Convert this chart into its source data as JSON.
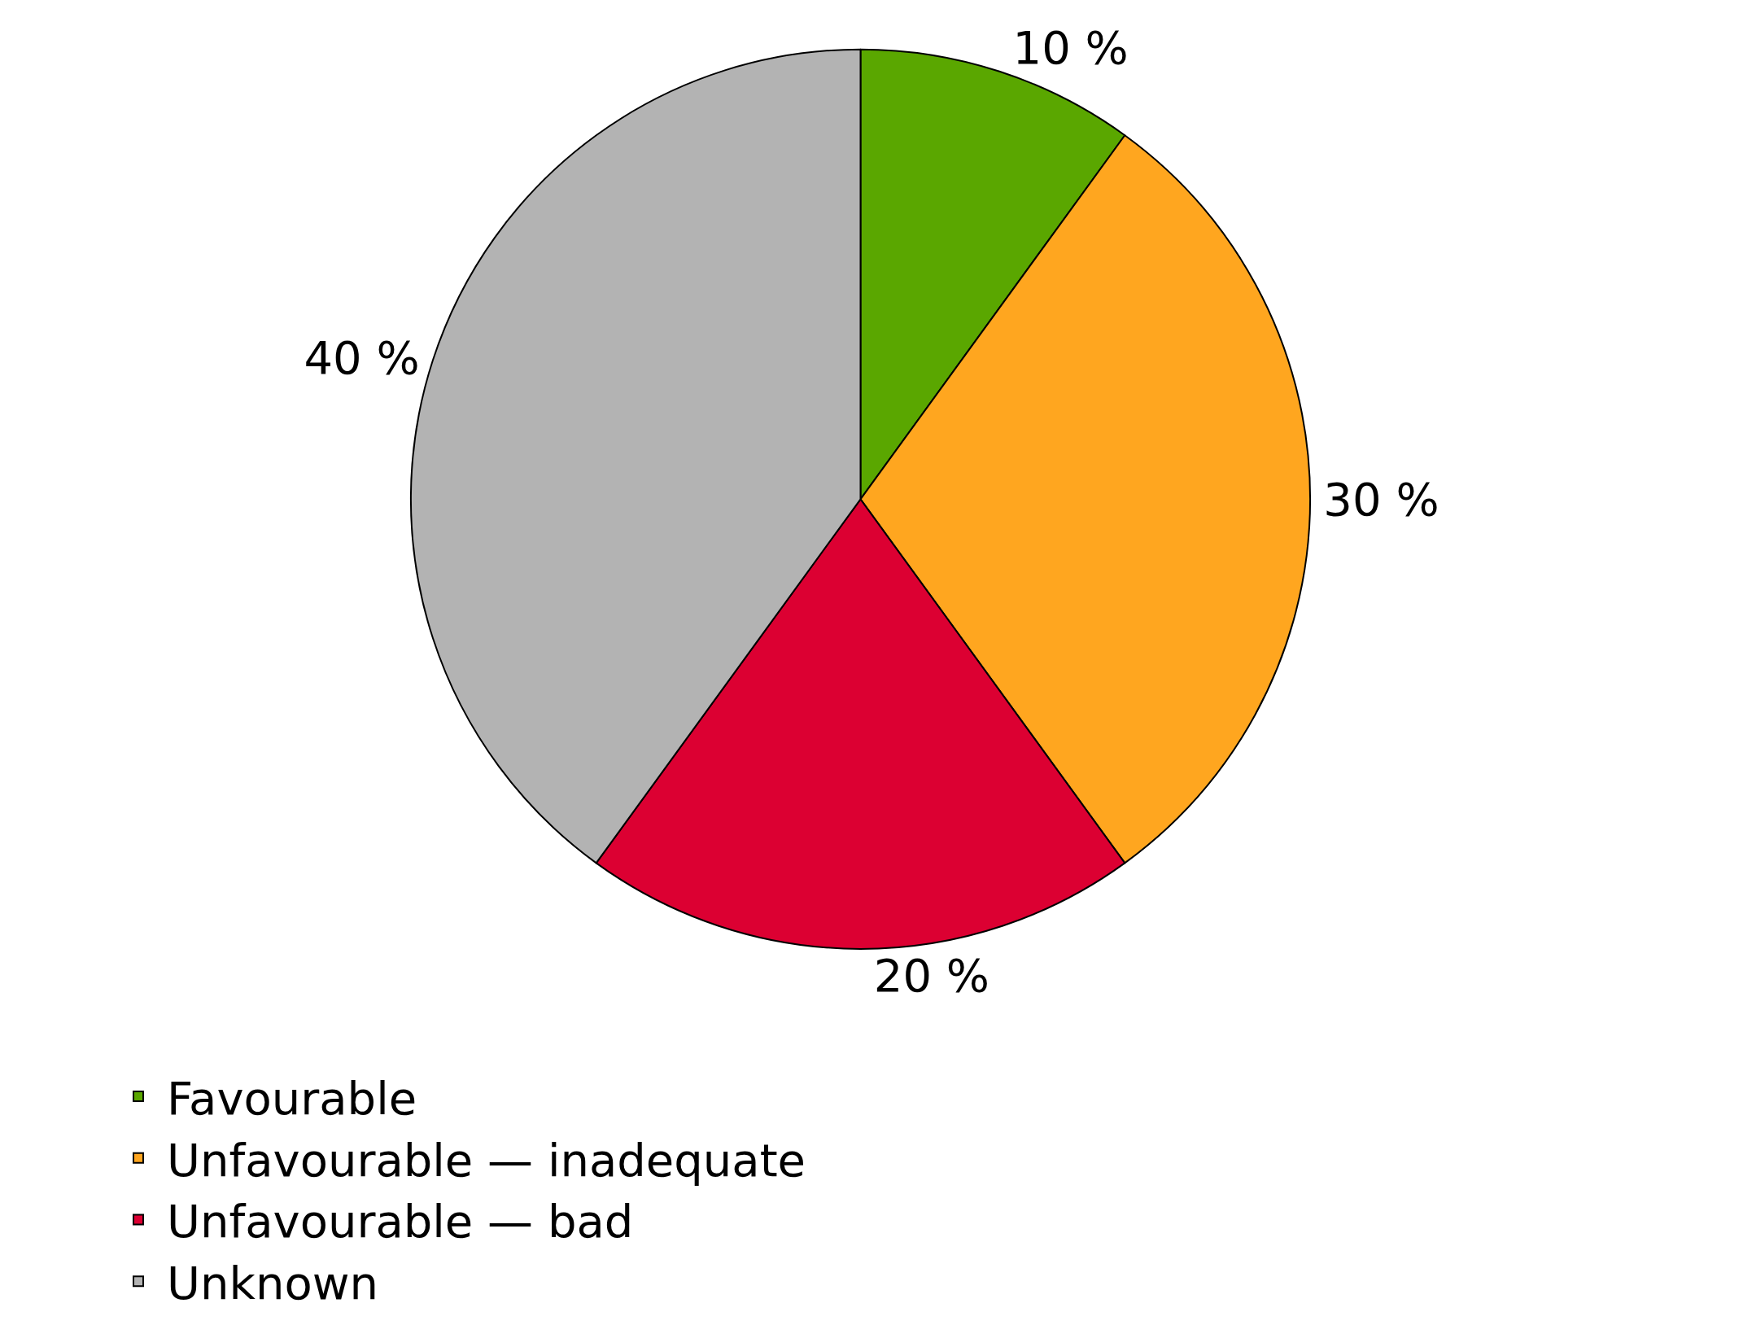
{
  "chart_data": {
    "type": "pie",
    "categories": [
      "Favourable",
      "Unfavourable — inadequate",
      "Unfavourable — bad",
      "Unknown"
    ],
    "values": [
      10,
      30,
      20,
      40
    ],
    "colors": [
      "#5aa700",
      "#ffa61f",
      "#dc0032",
      "#b3b3b3"
    ],
    "value_labels": [
      "10 %",
      "30 %",
      "20 %",
      "40 %"
    ],
    "legend": "bottom"
  }
}
